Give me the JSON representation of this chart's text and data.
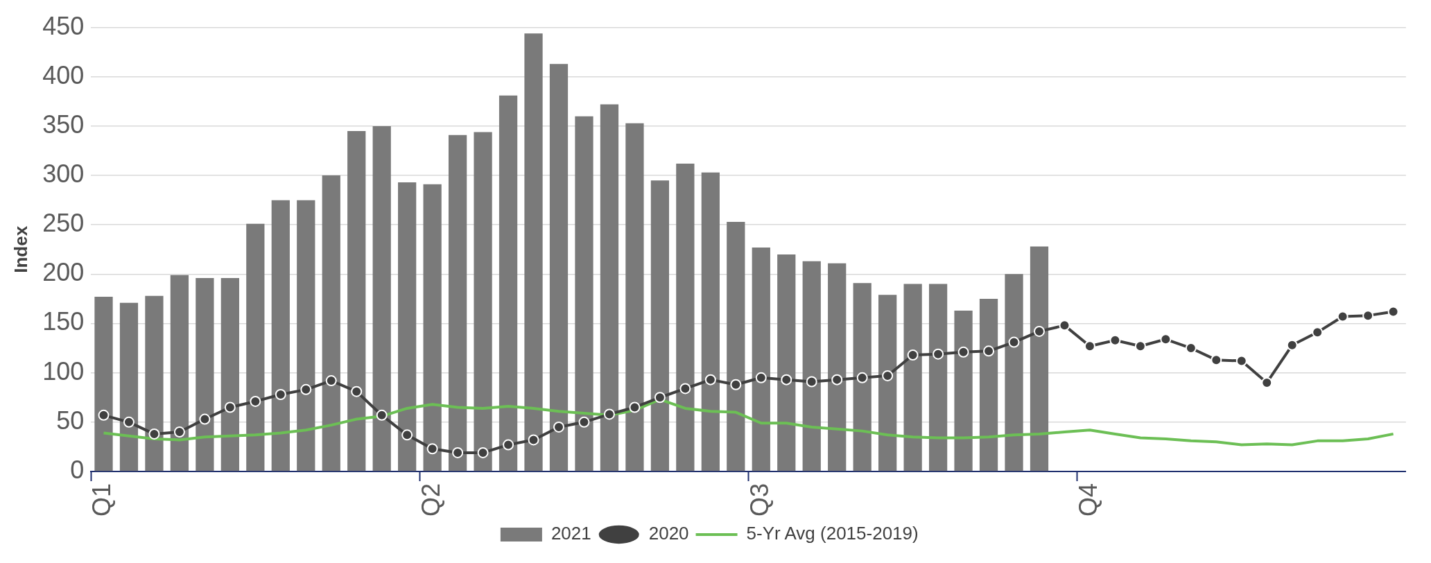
{
  "chart_data": {
    "type": "bar",
    "ylabel": "Index",
    "categories": [
      "Q1",
      null,
      null,
      null,
      null,
      null,
      null,
      null,
      null,
      null,
      null,
      null,
      null,
      "Q2",
      null,
      null,
      null,
      null,
      null,
      null,
      null,
      null,
      null,
      null,
      null,
      null,
      "Q3",
      null,
      null,
      null,
      null,
      null,
      null,
      null,
      null,
      null,
      null,
      null,
      null,
      "Q4",
      null,
      null,
      null,
      null,
      null,
      null,
      null,
      null,
      null,
      null,
      null,
      null
    ],
    "series": [
      {
        "name": "2021",
        "type": "bar",
        "color": "#7a7a7a",
        "values": [
          177,
          171,
          178,
          199,
          196,
          196,
          251,
          275,
          275,
          300,
          345,
          350,
          293,
          291,
          341,
          344,
          381,
          444,
          413,
          360,
          372,
          353,
          295,
          312,
          303,
          253,
          227,
          220,
          213,
          211,
          191,
          179,
          190,
          190,
          163,
          175,
          200,
          228,
          null,
          null,
          null,
          null,
          null,
          null,
          null,
          null,
          null,
          null,
          null,
          null,
          null,
          null
        ]
      },
      {
        "name": "2020",
        "type": "line",
        "color": "#404040",
        "marker": "circle",
        "values": [
          57,
          50,
          38,
          40,
          53,
          65,
          71,
          78,
          83,
          92,
          81,
          57,
          37,
          23,
          19,
          19,
          27,
          32,
          45,
          50,
          58,
          65,
          75,
          84,
          93,
          88,
          95,
          93,
          91,
          93,
          95,
          97,
          118,
          119,
          121,
          122,
          131,
          142,
          148,
          127,
          133,
          127,
          134,
          125,
          113,
          112,
          90,
          128,
          141,
          157,
          158,
          162
        ]
      },
      {
        "name": "5-Yr Avg (2015-2019)",
        "type": "line",
        "color": "#6cbf55",
        "values": [
          39,
          36,
          33,
          32,
          35,
          36,
          37,
          39,
          42,
          47,
          53,
          56,
          64,
          68,
          65,
          64,
          66,
          64,
          61,
          59,
          57,
          62,
          73,
          64,
          61,
          60,
          49,
          49,
          45,
          43,
          41,
          37,
          35,
          34,
          34,
          35,
          37,
          38,
          40,
          42,
          38,
          34,
          33,
          31,
          30,
          27,
          28,
          27,
          31,
          31,
          33,
          38
        ]
      }
    ],
    "ylim": [
      0,
      450
    ],
    "yticks": [
      0,
      50,
      100,
      150,
      200,
      250,
      300,
      350,
      400,
      450
    ],
    "grid": "y",
    "legend": "bottom"
  }
}
